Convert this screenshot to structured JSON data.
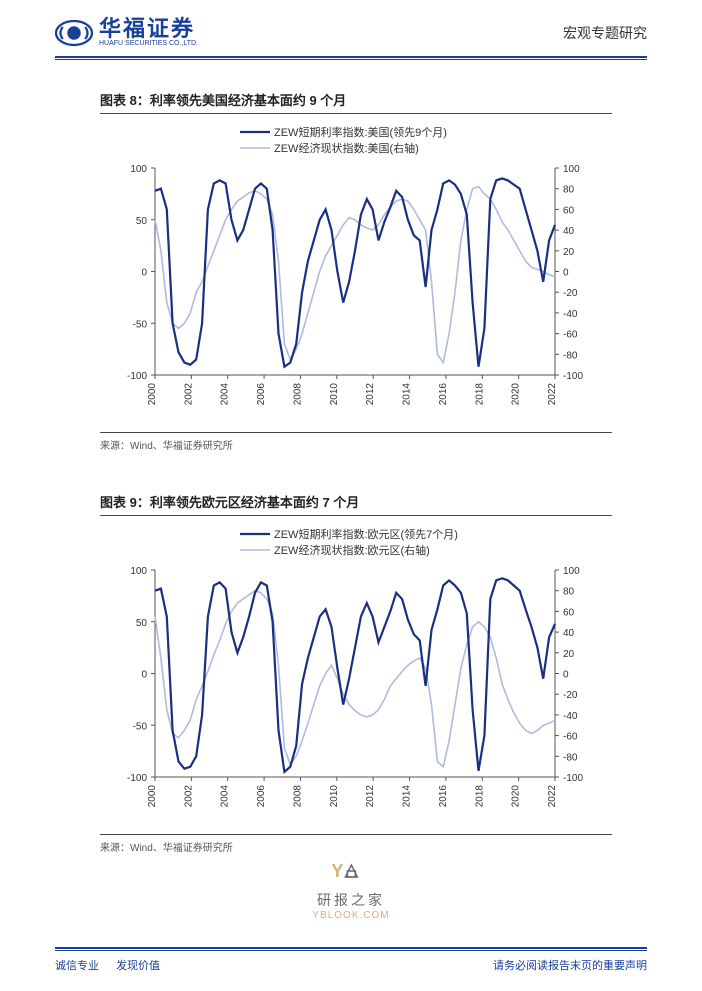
{
  "header": {
    "company_cn": "华福证券",
    "company_en": "HUAFU SECURITIES CO.,LTD.",
    "category": "宏观专题研究",
    "brand_color": "#1a3f99"
  },
  "chart8": {
    "title": "图表 8：利率领先美国经济基本面约 9 个月",
    "type": "line",
    "legend": [
      {
        "label": "ZEW短期利率指数:美国(领先9个月)",
        "color": "#1b2f80",
        "width": 2.2
      },
      {
        "label": "ZEW经济现状指数:美国(右轴)",
        "color": "#aebbe0",
        "width": 1.6
      }
    ],
    "x": {
      "ticks": [
        "2000",
        "2002",
        "2004",
        "2006",
        "2008",
        "2010",
        "2012",
        "2014",
        "2016",
        "2018",
        "2020",
        "2022"
      ],
      "label_fontsize": 10,
      "rotation": -90
    },
    "y_left": {
      "min": -100,
      "max": 100,
      "ticks": [
        -100,
        -50,
        0,
        50,
        100
      ],
      "label_fontsize": 10
    },
    "y_right": {
      "min": -100,
      "max": 100,
      "ticks": [
        -100,
        -80,
        -60,
        -40,
        -20,
        0,
        20,
        40,
        60,
        80,
        100
      ],
      "label_fontsize": 10
    },
    "series_rate": [
      78,
      80,
      60,
      -50,
      -78,
      -88,
      -90,
      -85,
      -50,
      60,
      85,
      88,
      85,
      50,
      30,
      40,
      60,
      80,
      85,
      80,
      40,
      -60,
      -92,
      -88,
      -70,
      -20,
      10,
      30,
      50,
      60,
      40,
      0,
      -30,
      -10,
      20,
      55,
      70,
      60,
      30,
      48,
      62,
      78,
      72,
      50,
      35,
      30,
      -15,
      40,
      60,
      85,
      88,
      84,
      75,
      55,
      -30,
      -92,
      -55,
      70,
      88,
      90,
      88,
      84,
      80,
      60,
      40,
      20,
      -10,
      30,
      45
    ],
    "series_econ": [
      50,
      20,
      -30,
      -50,
      -55,
      -50,
      -40,
      -20,
      -10,
      5,
      20,
      35,
      50,
      60,
      68,
      72,
      76,
      78,
      75,
      70,
      55,
      10,
      -70,
      -85,
      -75,
      -60,
      -40,
      -20,
      0,
      15,
      25,
      35,
      45,
      52,
      50,
      45,
      42,
      40,
      45,
      55,
      62,
      68,
      70,
      68,
      60,
      50,
      40,
      -10,
      -80,
      -88,
      -60,
      -20,
      30,
      60,
      80,
      82,
      75,
      70,
      60,
      48,
      40,
      30,
      20,
      10,
      4,
      2,
      0,
      -3,
      -5
    ],
    "background": "#ffffff",
    "source": "来源：Wind、华福证券研究所"
  },
  "chart9": {
    "title": "图表 9：利率领先欧元区经济基本面约 7 个月",
    "type": "line",
    "legend": [
      {
        "label": "ZEW短期利率指数:欧元区(领先7个月)",
        "color": "#1b2f80",
        "width": 2.2
      },
      {
        "label": "ZEW经济现状指数:欧元区(右轴)",
        "color": "#aebbe0",
        "width": 1.6
      }
    ],
    "x": {
      "ticks": [
        "2000",
        "2002",
        "2004",
        "2006",
        "2008",
        "2010",
        "2012",
        "2014",
        "2016",
        "2018",
        "2020",
        "2022"
      ],
      "label_fontsize": 10,
      "rotation": -90
    },
    "y_left": {
      "min": -100,
      "max": 100,
      "ticks": [
        -100,
        -50,
        0,
        50,
        100
      ],
      "label_fontsize": 10
    },
    "y_right": {
      "min": -100,
      "max": 100,
      "ticks": [
        -100,
        -80,
        -60,
        -40,
        -20,
        0,
        20,
        40,
        60,
        80,
        100
      ],
      "label_fontsize": 10
    },
    "series_rate": [
      80,
      82,
      55,
      -55,
      -85,
      -92,
      -90,
      -80,
      -40,
      55,
      85,
      88,
      82,
      40,
      20,
      35,
      55,
      78,
      88,
      85,
      50,
      -55,
      -95,
      -90,
      -70,
      -10,
      15,
      35,
      55,
      62,
      45,
      5,
      -30,
      -5,
      25,
      55,
      68,
      55,
      30,
      45,
      60,
      78,
      72,
      52,
      38,
      32,
      -12,
      42,
      62,
      85,
      90,
      85,
      78,
      58,
      -35,
      -94,
      -60,
      72,
      90,
      92,
      90,
      85,
      80,
      62,
      45,
      25,
      -5,
      35,
      48
    ],
    "series_econ": [
      55,
      15,
      -35,
      -58,
      -62,
      -55,
      -45,
      -25,
      -12,
      2,
      18,
      32,
      48,
      60,
      68,
      72,
      76,
      80,
      78,
      72,
      58,
      8,
      -72,
      -88,
      -80,
      -65,
      -48,
      -30,
      -12,
      0,
      8,
      -5,
      -20,
      -30,
      -36,
      -40,
      -42,
      -40,
      -35,
      -25,
      -12,
      -5,
      2,
      8,
      12,
      15,
      5,
      -30,
      -85,
      -90,
      -65,
      -30,
      5,
      28,
      45,
      50,
      45,
      35,
      15,
      -10,
      -25,
      -38,
      -48,
      -55,
      -58,
      -55,
      -50,
      -48,
      -45
    ],
    "background": "#ffffff",
    "source": "来源：Wind、华福证券研究所"
  },
  "watermark": {
    "brand": "YBK",
    "text": "研报之家",
    "url": "YBLOOK.COM",
    "color": "#c9a05a"
  },
  "footer": {
    "left1": "诚信专业",
    "left2": "发现价值",
    "right": "请务必阅读报告末页的重要声明"
  }
}
